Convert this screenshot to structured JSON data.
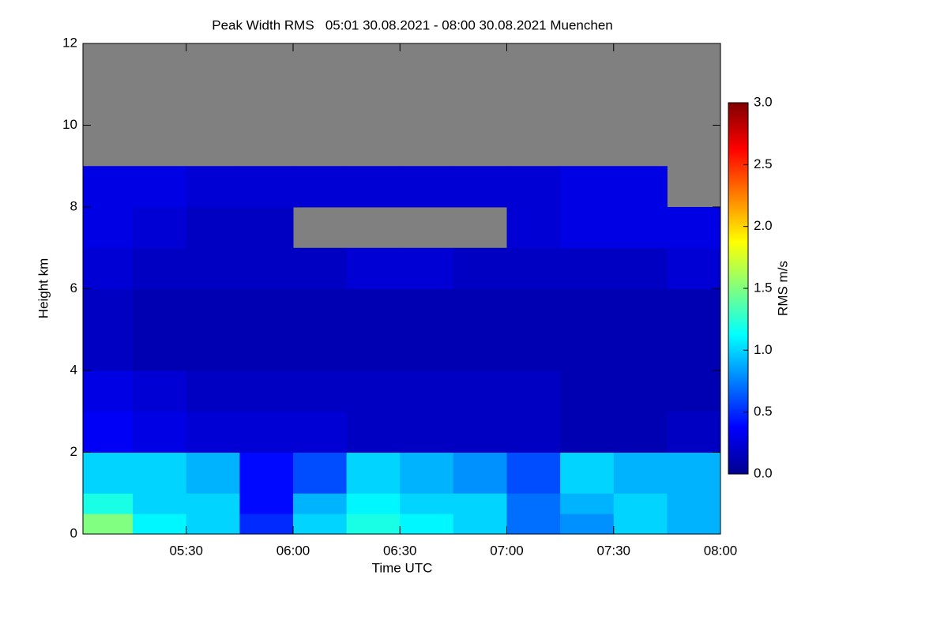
{
  "chart_data": {
    "type": "heatmap",
    "title": "Peak Width RMS   05:01 30.08.2021 - 08:00 30.08.2021 Muenchen",
    "x_label": "Time UTC",
    "y_label": "Height km",
    "colorbar_label": "RMS m/s",
    "colormap": "jet",
    "missing_color": "#808080",
    "xlim": [
      301,
      480
    ],
    "xticks": [
      {
        "value": 330,
        "label": "05:30"
      },
      {
        "value": 360,
        "label": "06:00"
      },
      {
        "value": 390,
        "label": "06:30"
      },
      {
        "value": 420,
        "label": "07:00"
      },
      {
        "value": 450,
        "label": "07:30"
      },
      {
        "value": 480,
        "label": "08:00"
      }
    ],
    "ylim": [
      0,
      12
    ],
    "yticks": [
      0,
      2,
      4,
      6,
      8,
      10,
      12
    ],
    "zlim": [
      0,
      3
    ],
    "zticks": [
      {
        "value": 0,
        "label": "0.0"
      },
      {
        "value": 0.5,
        "label": "0.5"
      },
      {
        "value": 1,
        "label": "1.0"
      },
      {
        "value": 1.5,
        "label": "1.5"
      },
      {
        "value": 2,
        "label": "2.0"
      },
      {
        "value": 2.5,
        "label": "2.5"
      },
      {
        "value": 3,
        "label": "3.0"
      }
    ],
    "x_edges": [
      301,
      315,
      330,
      345,
      360,
      375,
      390,
      405,
      420,
      435,
      450,
      465,
      480
    ],
    "y_edges": [
      0,
      0.5,
      1,
      2,
      3,
      4,
      5,
      6,
      7,
      8,
      9,
      10,
      12
    ],
    "z": [
      [
        1.5,
        1.1,
        1.0,
        0.5,
        1.0,
        1.2,
        1.1,
        1.0,
        0.7,
        0.8,
        1.0,
        0.9
      ],
      [
        1.2,
        1.0,
        1.0,
        0.4,
        0.9,
        1.1,
        1.0,
        1.0,
        0.7,
        0.9,
        1.0,
        0.9
      ],
      [
        1.0,
        1.0,
        0.9,
        0.4,
        0.6,
        1.0,
        0.9,
        0.8,
        0.6,
        1.0,
        0.9,
        0.9
      ],
      [
        0.35,
        0.3,
        0.25,
        0.25,
        0.25,
        0.2,
        0.2,
        0.2,
        0.2,
        0.15,
        0.15,
        0.2
      ],
      [
        0.3,
        0.25,
        0.2,
        0.2,
        0.2,
        0.2,
        0.2,
        0.2,
        0.2,
        0.15,
        0.15,
        0.15
      ],
      [
        0.2,
        0.15,
        0.15,
        0.15,
        0.15,
        0.15,
        0.15,
        0.15,
        0.15,
        0.15,
        0.15,
        0.15
      ],
      [
        0.2,
        0.15,
        0.15,
        0.15,
        0.15,
        0.15,
        0.15,
        0.15,
        0.15,
        0.15,
        0.15,
        0.15
      ],
      [
        0.25,
        0.2,
        0.2,
        0.2,
        0.2,
        0.25,
        0.25,
        0.2,
        0.2,
        0.2,
        0.2,
        0.25
      ],
      [
        0.3,
        0.25,
        0.2,
        0.2,
        null,
        null,
        null,
        null,
        0.25,
        0.3,
        0.3,
        0.3
      ],
      [
        0.3,
        0.3,
        0.25,
        0.25,
        0.25,
        0.25,
        0.25,
        0.25,
        0.25,
        0.3,
        0.3,
        null
      ],
      [
        null,
        null,
        null,
        null,
        null,
        null,
        null,
        null,
        null,
        null,
        null,
        null
      ],
      [
        null,
        null,
        null,
        null,
        null,
        null,
        null,
        null,
        null,
        null,
        null,
        null
      ]
    ]
  }
}
